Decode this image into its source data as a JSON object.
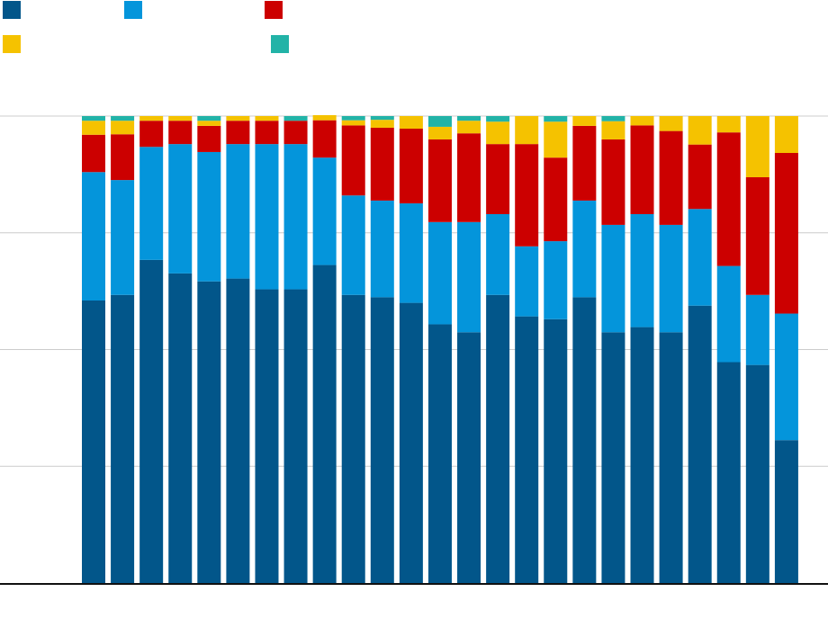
{
  "chart_data": {
    "type": "bar",
    "stacked": true,
    "normalized": true,
    "title": "",
    "xlabel": "",
    "ylabel": "",
    "ylim": [
      0,
      1
    ],
    "grid": true,
    "legend_position": "top-left",
    "categories": [
      "",
      "",
      "",
      "",
      "",
      "",
      "",
      "",
      "",
      "",
      "",
      "",
      "",
      "",
      "",
      "",
      "",
      "",
      "",
      "",
      "",
      "",
      "",
      "",
      ""
    ],
    "series": [
      {
        "color": "#02568a",
        "values": [
          0.605,
          0.617,
          0.692,
          0.663,
          0.646,
          0.652,
          0.629,
          0.629,
          0.681,
          0.617,
          0.612,
          0.6,
          0.554,
          0.537,
          0.617,
          0.571,
          0.565,
          0.612,
          0.537,
          0.548,
          0.537,
          0.594,
          0.473,
          0.467,
          0.306
        ]
      },
      {
        "color": "#0495db",
        "values": [
          0.275,
          0.246,
          0.242,
          0.277,
          0.277,
          0.288,
          0.311,
          0.311,
          0.23,
          0.213,
          0.207,
          0.213,
          0.219,
          0.236,
          0.173,
          0.15,
          0.167,
          0.207,
          0.23,
          0.242,
          0.23,
          0.207,
          0.206,
          0.15,
          0.271
        ]
      },
      {
        "color": "#cc0000",
        "values": [
          0.08,
          0.098,
          0.056,
          0.05,
          0.056,
          0.05,
          0.05,
          0.05,
          0.08,
          0.15,
          0.156,
          0.16,
          0.177,
          0.19,
          0.15,
          0.219,
          0.179,
          0.16,
          0.183,
          0.19,
          0.201,
          0.138,
          0.286,
          0.252,
          0.344
        ]
      },
      {
        "color": "#f5c200",
        "values": [
          0.03,
          0.029,
          0.01,
          0.01,
          0.011,
          0.01,
          0.01,
          0.0,
          0.011,
          0.011,
          0.017,
          0.027,
          0.027,
          0.027,
          0.048,
          0.06,
          0.077,
          0.021,
          0.039,
          0.02,
          0.032,
          0.061,
          0.035,
          0.131,
          0.079
        ]
      },
      {
        "color": "#22b3a7",
        "values": [
          0.01,
          0.01,
          0.0,
          0.0,
          0.01,
          0.0,
          0.0,
          0.01,
          0.0,
          0.009,
          0.008,
          0.0,
          0.023,
          0.01,
          0.012,
          0.0,
          0.012,
          0.0,
          0.011,
          0.0,
          0.0,
          0.0,
          0.0,
          0.0,
          0.0
        ]
      }
    ]
  },
  "legend": [
    {
      "color": "#02568a",
      "label": ""
    },
    {
      "color": "#0495db",
      "label": ""
    },
    {
      "color": "#cc0000",
      "label": ""
    },
    {
      "color": "#f5c200",
      "label": ""
    },
    {
      "color": "#22b3a7",
      "label": ""
    }
  ]
}
